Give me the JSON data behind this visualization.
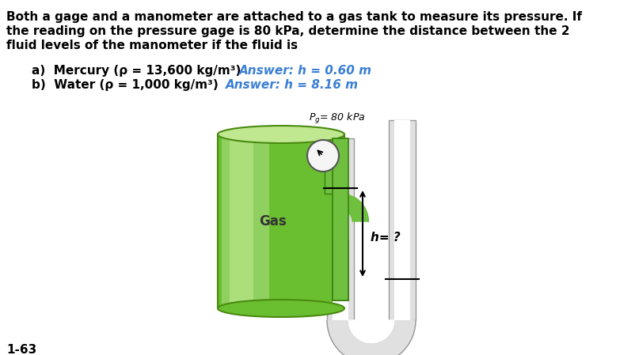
{
  "title_line1": "Both a gage and a manometer are attached to a gas tank to measure its pressure. If",
  "title_line2": "the reading on the pressure gage is 80 kPa, determine the distance between the 2",
  "title_line3": "fluid levels of the manometer if the fluid is",
  "part_a_black": "a)  Mercury (",
  "part_a_rho": "ρ",
  "part_a_mid": " = 13,600 kg/m³) ",
  "part_a_answer": "Answer: h = 0.60 m",
  "part_b_black": "b)  Water (",
  "part_b_rho": "ρ",
  "part_b_mid": " = 1,000 kg/m³) ",
  "part_b_answer": "Answer: h = 8.16 m",
  "label_pg": "P",
  "label_pg_sub": "g",
  "label_pg_rest": "= 80 kPa",
  "label_gas": "Gas",
  "label_h": "h= ?",
  "problem_num": "1-63",
  "bg_color": "#ffffff",
  "text_color": "#000000",
  "answer_color": "#3a7fd5",
  "tank_green_light": "#90d060",
  "tank_green_mid": "#6abf30",
  "tank_green_dark": "#4a8a10",
  "tank_top_light": "#c0e890",
  "pipe_fill": "#e0e0e0",
  "pipe_edge": "#999999",
  "pipe_green": "#70c040",
  "pipe_green_edge": "#3a8010"
}
